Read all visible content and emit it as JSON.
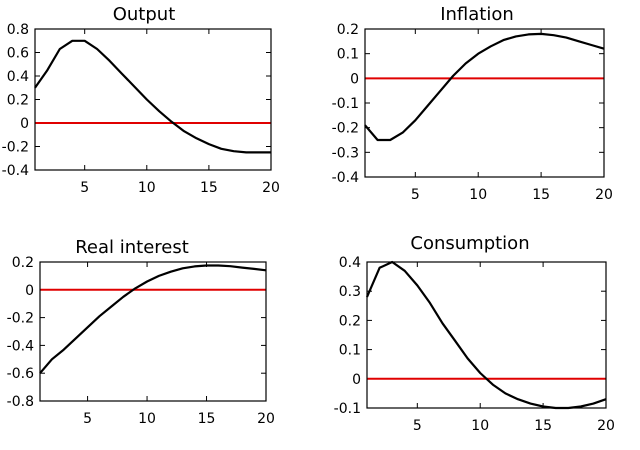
{
  "chart_data": [
    {
      "type": "line",
      "title": "Output",
      "x": [
        1,
        2,
        3,
        4,
        5,
        6,
        7,
        8,
        9,
        10,
        11,
        12,
        13,
        14,
        15,
        16,
        17,
        18,
        19,
        20
      ],
      "series": [
        {
          "name": "Output",
          "values": [
            0.3,
            0.45,
            0.63,
            0.7,
            0.7,
            0.63,
            0.53,
            0.42,
            0.31,
            0.2,
            0.1,
            0.01,
            -0.07,
            -0.13,
            -0.18,
            -0.22,
            -0.24,
            -0.25,
            -0.25,
            -0.25
          ]
        },
        {
          "name": "zero",
          "values": [
            0,
            0,
            0,
            0,
            0,
            0,
            0,
            0,
            0,
            0,
            0,
            0,
            0,
            0,
            0,
            0,
            0,
            0,
            0,
            0
          ]
        }
      ],
      "xlim": [
        1,
        20
      ],
      "ylim": [
        -0.4,
        0.8
      ],
      "xticks": [
        5,
        10,
        15,
        20
      ],
      "xtick_labels": [
        "5",
        "10",
        "15",
        "20"
      ],
      "yticks": [
        0.8,
        0.6,
        0.4,
        0.2,
        0,
        -0.2,
        -0.4
      ],
      "ytick_labels": [
        "0.8",
        "0.6",
        "0.4",
        "0.2",
        "0",
        "-0.2",
        "-0.4"
      ],
      "xlabel": "",
      "ylabel": ""
    },
    {
      "type": "line",
      "title": "Inflation",
      "x": [
        1,
        2,
        3,
        4,
        5,
        6,
        7,
        8,
        9,
        10,
        11,
        12,
        13,
        14,
        15,
        16,
        17,
        18,
        19,
        20
      ],
      "series": [
        {
          "name": "Inflation",
          "values": [
            -0.19,
            -0.25,
            -0.25,
            -0.22,
            -0.17,
            -0.11,
            -0.05,
            0.01,
            0.06,
            0.1,
            0.13,
            0.155,
            0.17,
            0.178,
            0.18,
            0.175,
            0.165,
            0.15,
            0.135,
            0.12
          ]
        },
        {
          "name": "zero",
          "values": [
            0,
            0,
            0,
            0,
            0,
            0,
            0,
            0,
            0,
            0,
            0,
            0,
            0,
            0,
            0,
            0,
            0,
            0,
            0,
            0
          ]
        }
      ],
      "xlim": [
        1,
        20
      ],
      "ylim": [
        -0.4,
        0.2
      ],
      "xticks": [
        5,
        10,
        15,
        20
      ],
      "xtick_labels": [
        "5",
        "10",
        "15",
        "20"
      ],
      "yticks": [
        0.2,
        0.1,
        0,
        -0.1,
        -0.2,
        -0.3,
        -0.4
      ],
      "ytick_labels": [
        "0.2",
        "0.1",
        "0",
        "-0.1",
        "-0.2",
        "-0.3",
        "-0.4"
      ],
      "xlabel": "",
      "ylabel": ""
    },
    {
      "type": "line",
      "title": "Real interest",
      "x": [
        1,
        2,
        3,
        4,
        5,
        6,
        7,
        8,
        9,
        10,
        11,
        12,
        13,
        14,
        15,
        16,
        17,
        18,
        19,
        20
      ],
      "series": [
        {
          "name": "Real interest",
          "values": [
            -0.6,
            -0.5,
            -0.43,
            -0.35,
            -0.27,
            -0.19,
            -0.12,
            -0.05,
            0.01,
            0.06,
            0.1,
            0.13,
            0.155,
            0.168,
            0.175,
            0.175,
            0.17,
            0.16,
            0.15,
            0.14
          ]
        },
        {
          "name": "zero",
          "values": [
            0,
            0,
            0,
            0,
            0,
            0,
            0,
            0,
            0,
            0,
            0,
            0,
            0,
            0,
            0,
            0,
            0,
            0,
            0,
            0
          ]
        }
      ],
      "xlim": [
        1,
        20
      ],
      "ylim": [
        -0.8,
        0.2
      ],
      "xticks": [
        5,
        10,
        15,
        20
      ],
      "xtick_labels": [
        "5",
        "10",
        "15",
        "20"
      ],
      "yticks": [
        0.2,
        0,
        -0.2,
        -0.4,
        -0.6,
        -0.8
      ],
      "ytick_labels": [
        "0.2",
        "0",
        "-0.2",
        "-0.4",
        "-0.6",
        "-0.8"
      ],
      "xlabel": "",
      "ylabel": ""
    },
    {
      "type": "line",
      "title": "Consumption",
      "x": [
        1,
        2,
        3,
        4,
        5,
        6,
        7,
        8,
        9,
        10,
        11,
        12,
        13,
        14,
        15,
        16,
        17,
        18,
        19,
        20
      ],
      "series": [
        {
          "name": "Consumption",
          "values": [
            0.28,
            0.38,
            0.4,
            0.37,
            0.32,
            0.26,
            0.19,
            0.13,
            0.07,
            0.02,
            -0.02,
            -0.05,
            -0.07,
            -0.085,
            -0.095,
            -0.1,
            -0.1,
            -0.095,
            -0.085,
            -0.07
          ]
        },
        {
          "name": "zero",
          "values": [
            0,
            0,
            0,
            0,
            0,
            0,
            0,
            0,
            0,
            0,
            0,
            0,
            0,
            0,
            0,
            0,
            0,
            0,
            0,
            0
          ]
        }
      ],
      "xlim": [
        1,
        20
      ],
      "ylim": [
        -0.1,
        0.4
      ],
      "xticks": [
        5,
        10,
        15,
        20
      ],
      "xtick_labels": [
        "5",
        "10",
        "15",
        "20"
      ],
      "yticks": [
        0.4,
        0.3,
        0.2,
        0.1,
        0,
        -0.1
      ],
      "ytick_labels": [
        "0.4",
        "0.3",
        "0.2",
        "0.1",
        "0",
        "-0.1"
      ],
      "xlabel": "",
      "ylabel": ""
    }
  ],
  "colors": {
    "curve": "#000000",
    "zero_line": "#e00000",
    "frame": "#000000",
    "background": "#ffffff"
  }
}
